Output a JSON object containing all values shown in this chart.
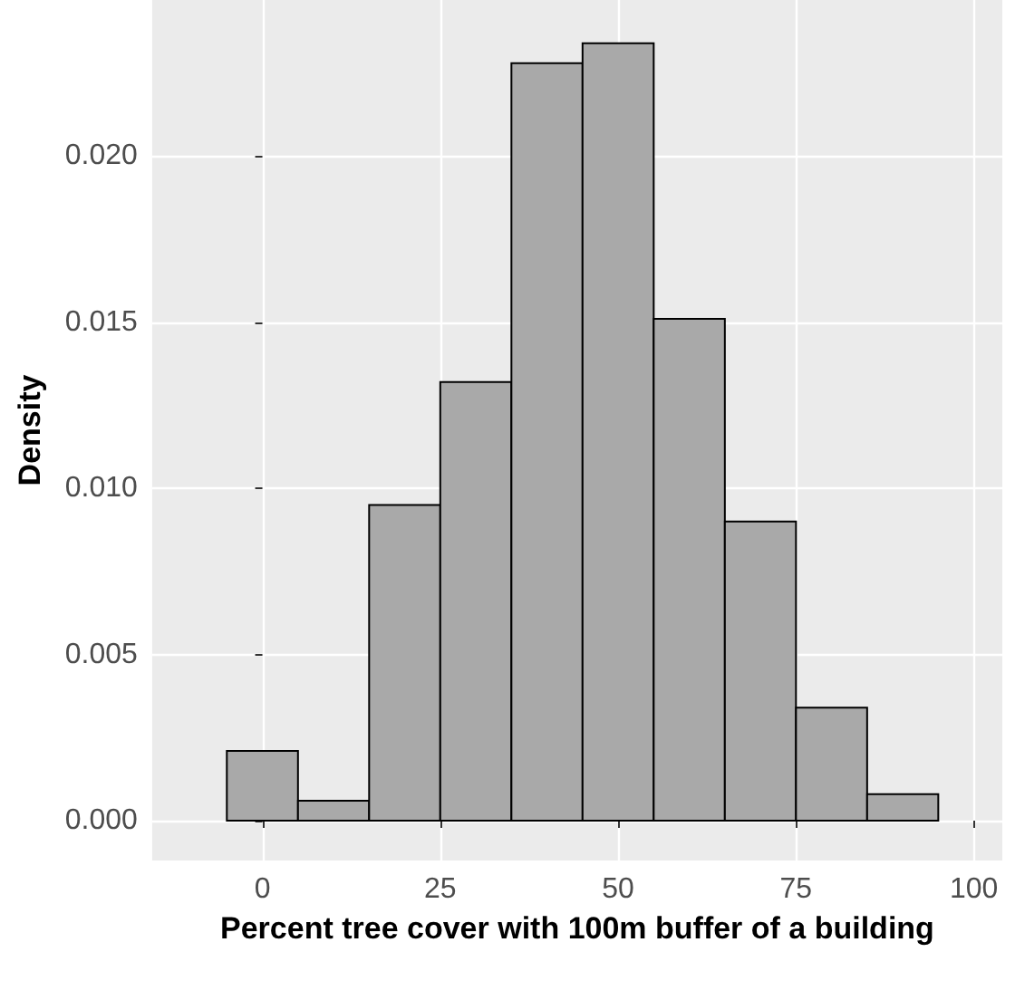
{
  "chart_data": {
    "type": "histogram",
    "xlabel": "Percent tree cover with 100m buffer of a building",
    "ylabel": "Density",
    "bins": [
      -5,
      5,
      15,
      25,
      35,
      45,
      55,
      65,
      75,
      85,
      95
    ],
    "values": [
      0.0021,
      0.0006,
      0.0095,
      0.0132,
      0.0228,
      0.0234,
      0.0151,
      0.009,
      0.0034,
      0.0008
    ],
    "color": "#a9a9a9",
    "xlim": [
      -15.5,
      104
    ],
    "xticks": [
      0,
      25,
      50,
      75,
      100
    ],
    "ylim": [
      -0.0012,
      0.0247
    ],
    "yticks": [
      {
        "value": 0,
        "label": "0.000"
      },
      {
        "value": 0.005,
        "label": "0.005"
      },
      {
        "value": 0.01,
        "label": "0.010"
      },
      {
        "value": 0.015,
        "label": "0.015"
      },
      {
        "value": 0.02,
        "label": "0.020"
      }
    ],
    "grid": true
  }
}
